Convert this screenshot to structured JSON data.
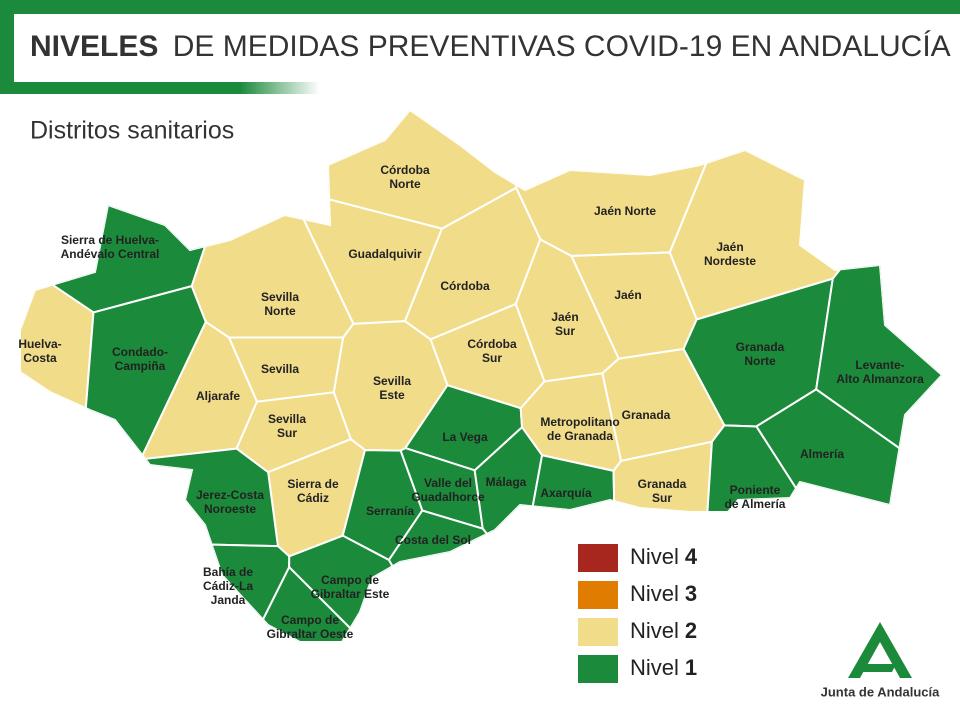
{
  "header": {
    "title_bold": "NIVELES",
    "title_rest": "DE MEDIDAS PREVENTIVAS COVID-19 EN ANDALUCÍA",
    "subtitle": "Distritos sanitarios"
  },
  "legend": [
    {
      "label": "Nivel",
      "level": 4,
      "color": "#a7261d"
    },
    {
      "label": "Nivel",
      "level": 3,
      "color": "#e07c00"
    },
    {
      "label": "Nivel",
      "level": 2,
      "color": "#f1dc8a"
    },
    {
      "label": "Nivel",
      "level": 1,
      "color": "#1b8a3b"
    }
  ],
  "districts": [
    {
      "name": [
        "Córdoba",
        "Norte"
      ],
      "level": 2
    },
    {
      "name": [
        "Jaén Norte"
      ],
      "level": 2
    },
    {
      "name": [
        "Jaén",
        "Nordeste"
      ],
      "level": 2
    },
    {
      "name": [
        "Guadalquivir"
      ],
      "level": 2
    },
    {
      "name": [
        "Córdoba"
      ],
      "level": 2
    },
    {
      "name": [
        "Jaén"
      ],
      "level": 2
    },
    {
      "name": [
        "Jaén",
        "Sur"
      ],
      "level": 2
    },
    {
      "name": [
        "Sierra de Huelva-",
        "Andévalo Central"
      ],
      "level": 1
    },
    {
      "name": [
        "Huelva-",
        "Costa"
      ],
      "level": 2
    },
    {
      "name": [
        "Condado-",
        "Campiña"
      ],
      "level": 1
    },
    {
      "name": [
        "Sevilla",
        "Norte"
      ],
      "level": 2
    },
    {
      "name": [
        "Sevilla"
      ],
      "level": 2
    },
    {
      "name": [
        "Córdoba",
        "Sur"
      ],
      "level": 2
    },
    {
      "name": [
        "Sevilla",
        "Este"
      ],
      "level": 2
    },
    {
      "name": [
        "Aljarafe"
      ],
      "level": 2
    },
    {
      "name": [
        "Sevilla",
        "Sur"
      ],
      "level": 2
    },
    {
      "name": [
        "Granada",
        "Norte"
      ],
      "level": 1
    },
    {
      "name": [
        "Levante-",
        "Alto Almanzora"
      ],
      "level": 1
    },
    {
      "name": [
        "La Vega"
      ],
      "level": 1
    },
    {
      "name": [
        "Metropolitano",
        "de Granada"
      ],
      "level": 2
    },
    {
      "name": [
        "Granada"
      ],
      "level": 2
    },
    {
      "name": [
        "Almería"
      ],
      "level": 1
    },
    {
      "name": [
        "Sierra de",
        "Cádiz"
      ],
      "level": 2
    },
    {
      "name": [
        "Jerez-Costa",
        "Noroeste"
      ],
      "level": 1
    },
    {
      "name": [
        "Valle del",
        "Guadalhorce"
      ],
      "level": 1
    },
    {
      "name": [
        "Málaga"
      ],
      "level": 1
    },
    {
      "name": [
        "Axarquía"
      ],
      "level": 1
    },
    {
      "name": [
        "Granada",
        "Sur"
      ],
      "level": 2
    },
    {
      "name": [
        "Poniente",
        "de Almería"
      ],
      "level": 1
    },
    {
      "name": [
        "Serranía"
      ],
      "level": 1
    },
    {
      "name": [
        "Costa del Sol"
      ],
      "level": 1
    },
    {
      "name": [
        "Bahía de",
        "Cádiz-La",
        "Janda"
      ],
      "level": 1
    },
    {
      "name": [
        "Campo de",
        "Gibraltar Este"
      ],
      "level": 1
    },
    {
      "name": [
        "Campo de",
        "Gibraltar Oeste"
      ],
      "level": 1
    }
  ],
  "logo": "Junta de Andalucía"
}
